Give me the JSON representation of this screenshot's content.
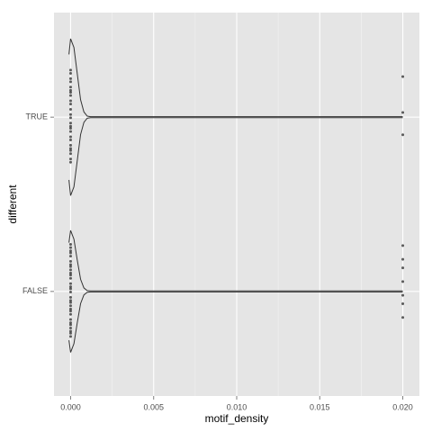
{
  "chart_data": {
    "type": "violin",
    "x_label": "motif_density",
    "y_label": "different",
    "categories": [
      "FALSE",
      "TRUE"
    ],
    "xlim": [
      -0.001,
      0.021
    ],
    "xticks": [
      {
        "value": 0,
        "label": "0.000"
      },
      {
        "value": 0.005,
        "label": "0.005"
      },
      {
        "value": 0.01,
        "label": "0.010"
      },
      {
        "value": 0.015,
        "label": "0.015"
      },
      {
        "value": 0.02,
        "label": "0.020"
      }
    ],
    "grid": true,
    "color": "#333333",
    "density_x": [
      [
        -0.0001,
        0,
        0.0002,
        0.0004,
        0.0006,
        0.0008,
        0.001,
        0.0012,
        0.02
      ],
      [
        -0.0001,
        0,
        0.0002,
        0.0004,
        0.0006,
        0.0008,
        0.001,
        0.0012,
        0.02
      ]
    ],
    "density_width": [
      [
        0.28,
        0.35,
        0.3,
        0.18,
        0.07,
        0.02,
        0.005,
        0.003,
        0.003
      ],
      [
        0.36,
        0.45,
        0.4,
        0.25,
        0.1,
        0.03,
        0.006,
        0.003,
        0.003
      ]
    ],
    "points": [
      [
        0,
        0,
        0,
        0,
        0,
        0,
        0,
        0,
        0,
        0,
        0,
        0,
        0,
        0,
        0,
        0,
        0,
        0,
        0,
        0,
        0,
        0,
        0,
        0,
        0,
        0,
        0,
        0,
        0,
        0,
        0.02,
        0.02,
        0.02,
        0.02,
        0.02,
        0.02,
        0.02
      ],
      [
        0,
        0,
        0,
        0,
        0,
        0,
        0,
        0,
        0,
        0,
        0,
        0,
        0,
        0,
        0,
        0,
        0,
        0,
        0,
        0,
        0,
        0,
        0,
        0,
        0,
        0.02,
        0.02,
        0.02
      ]
    ]
  }
}
